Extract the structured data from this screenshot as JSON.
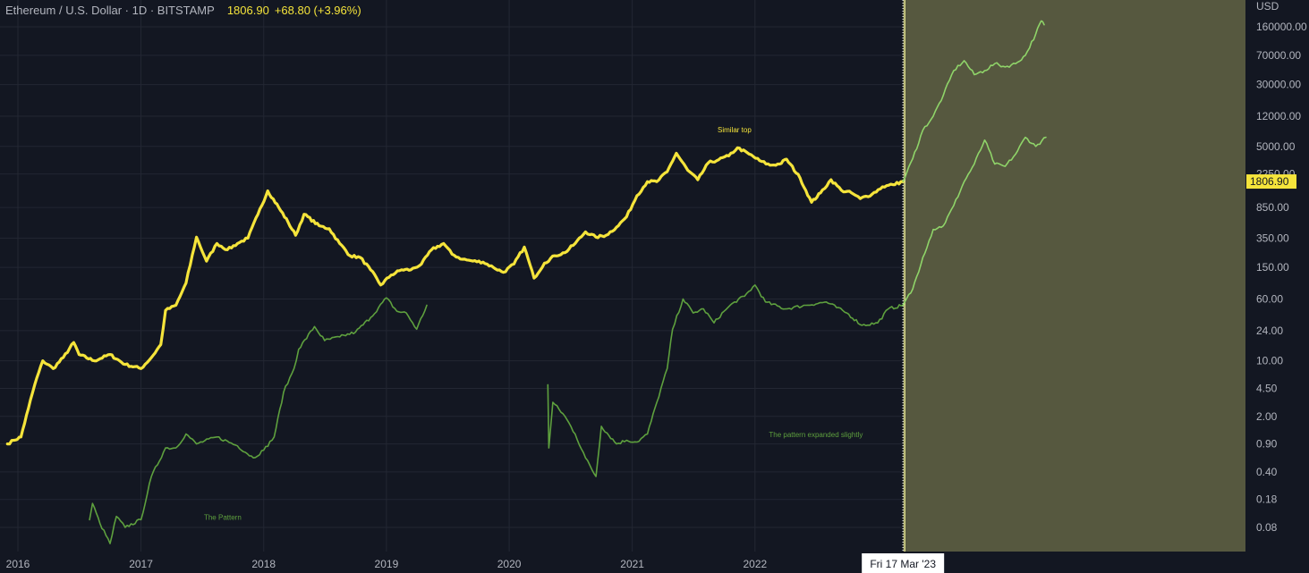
{
  "header": {
    "symbol": "Ethereum / U.S. Dollar · 1D · BITSTAMP",
    "last": "1806.90",
    "change": "+68.80 (+3.96%)"
  },
  "colors": {
    "background": "#131722",
    "grid": "#232733",
    "price_line": "#f5e43b",
    "pattern_line": "#5ea03e",
    "projection_line": "#8fd469",
    "projection_zone": "#56583f",
    "zone_border": "#e2e28f"
  },
  "chart_data": {
    "type": "line",
    "y_scale": "log",
    "y_unit": "USD",
    "y_ticks": [
      "160000.00",
      "70000.00",
      "30000.00",
      "12000.00",
      "5000.00",
      "2250.00",
      "850.00",
      "350.00",
      "150.00",
      "60.00",
      "24.00",
      "10.00",
      "4.50",
      "2.00",
      "0.90",
      "0.40",
      "0.18",
      "0.08"
    ],
    "x_ticks": [
      "2016",
      "2017",
      "2018",
      "2019",
      "2020",
      "2021",
      "2022"
    ],
    "last_price_label": "1806.90",
    "crosshair_label": "Fri 17 Mar '23",
    "annotations": [
      {
        "text": "Similar top",
        "x": "2021-11",
        "y": 7500
      },
      {
        "text": "The pattern expanded slightly",
        "x": "2022-07",
        "y": 1.1
      },
      {
        "text": "The Pattern",
        "x": "2017-09",
        "y": 0.1
      }
    ],
    "series": [
      {
        "role": "price",
        "points": [
          [
            "2015-12-01",
            0.9
          ],
          [
            "2015-12-20",
            1.0
          ],
          [
            "2016-01-10",
            1.1
          ],
          [
            "2016-02-01",
            2.5
          ],
          [
            "2016-02-20",
            5
          ],
          [
            "2016-03-15",
            10
          ],
          [
            "2016-04-15",
            8
          ],
          [
            "2016-05-15",
            11
          ],
          [
            "2016-06-15",
            17
          ],
          [
            "2016-07-01",
            12
          ],
          [
            "2016-08-15",
            10
          ],
          [
            "2016-10-01",
            12
          ],
          [
            "2016-11-15",
            9
          ],
          [
            "2017-01-01",
            8
          ],
          [
            "2017-02-01",
            11
          ],
          [
            "2017-03-01",
            16
          ],
          [
            "2017-03-15",
            43
          ],
          [
            "2017-04-15",
            50
          ],
          [
            "2017-05-15",
            95
          ],
          [
            "2017-06-15",
            360
          ],
          [
            "2017-07-15",
            180
          ],
          [
            "2017-08-15",
            300
          ],
          [
            "2017-09-15",
            250
          ],
          [
            "2017-10-15",
            300
          ],
          [
            "2017-11-15",
            350
          ],
          [
            "2017-12-15",
            700
          ],
          [
            "2018-01-13",
            1380
          ],
          [
            "2018-02-15",
            850
          ],
          [
            "2018-03-15",
            550
          ],
          [
            "2018-04-06",
            380
          ],
          [
            "2018-05-01",
            700
          ],
          [
            "2018-06-15",
            500
          ],
          [
            "2018-07-15",
            460
          ],
          [
            "2018-08-15",
            300
          ],
          [
            "2018-09-15",
            210
          ],
          [
            "2018-10-15",
            200
          ],
          [
            "2018-11-15",
            140
          ],
          [
            "2018-12-15",
            90
          ],
          [
            "2019-01-15",
            120
          ],
          [
            "2019-02-15",
            140
          ],
          [
            "2019-03-15",
            140
          ],
          [
            "2019-04-15",
            165
          ],
          [
            "2019-05-15",
            250
          ],
          [
            "2019-06-20",
            300
          ],
          [
            "2019-07-15",
            220
          ],
          [
            "2019-08-15",
            190
          ],
          [
            "2019-09-15",
            180
          ],
          [
            "2019-10-15",
            175
          ],
          [
            "2019-11-15",
            150
          ],
          [
            "2019-12-15",
            130
          ],
          [
            "2020-01-15",
            165
          ],
          [
            "2020-02-15",
            270
          ],
          [
            "2020-03-15",
            110
          ],
          [
            "2020-04-15",
            170
          ],
          [
            "2020-05-15",
            210
          ],
          [
            "2020-06-15",
            230
          ],
          [
            "2020-07-15",
            300
          ],
          [
            "2020-08-15",
            420
          ],
          [
            "2020-09-15",
            360
          ],
          [
            "2020-10-15",
            380
          ],
          [
            "2020-11-15",
            480
          ],
          [
            "2020-12-15",
            650
          ],
          [
            "2021-01-15",
            1200
          ],
          [
            "2021-02-15",
            1800
          ],
          [
            "2021-03-15",
            1800
          ],
          [
            "2021-04-15",
            2400
          ],
          [
            "2021-05-12",
            4100
          ],
          [
            "2021-06-15",
            2500
          ],
          [
            "2021-07-15",
            1900
          ],
          [
            "2021-08-15",
            3100
          ],
          [
            "2021-09-15",
            3400
          ],
          [
            "2021-10-15",
            3800
          ],
          [
            "2021-11-10",
            4800
          ],
          [
            "2021-12-15",
            4000
          ],
          [
            "2022-01-15",
            3300
          ],
          [
            "2022-02-15",
            2900
          ],
          [
            "2022-03-15",
            3000
          ],
          [
            "2022-04-05",
            3450
          ],
          [
            "2022-05-15",
            2000
          ],
          [
            "2022-06-18",
            990
          ],
          [
            "2022-07-15",
            1300
          ],
          [
            "2022-08-15",
            1900
          ],
          [
            "2022-09-15",
            1400
          ],
          [
            "2022-10-15",
            1300
          ],
          [
            "2022-11-10",
            1100
          ],
          [
            "2022-12-15",
            1250
          ],
          [
            "2023-01-15",
            1550
          ],
          [
            "2023-02-15",
            1650
          ],
          [
            "2023-03-17",
            1806.9
          ]
        ]
      },
      {
        "role": "pattern",
        "points": [
          [
            "2016-08-01",
            0.1
          ],
          [
            "2016-08-10",
            0.16
          ],
          [
            "2016-09-01",
            0.09
          ],
          [
            "2016-10-01",
            0.05
          ],
          [
            "2016-10-20",
            0.11
          ],
          [
            "2016-11-15",
            0.08
          ],
          [
            "2017-01-01",
            0.1
          ],
          [
            "2017-02-01",
            0.35
          ],
          [
            "2017-03-15",
            0.8
          ],
          [
            "2017-04-15",
            0.8
          ],
          [
            "2017-05-15",
            1.2
          ],
          [
            "2017-06-15",
            0.9
          ],
          [
            "2017-08-15",
            1.1
          ],
          [
            "2017-10-15",
            0.85
          ],
          [
            "2017-12-01",
            0.6
          ],
          [
            "2018-01-01",
            0.75
          ],
          [
            "2018-02-01",
            1.1
          ],
          [
            "2018-03-01",
            4
          ],
          [
            "2018-04-01",
            8
          ],
          [
            "2018-04-15",
            14
          ],
          [
            "2018-06-01",
            27
          ],
          [
            "2018-07-01",
            18
          ],
          [
            "2018-08-15",
            20
          ],
          [
            "2018-10-01",
            23
          ],
          [
            "2018-11-15",
            35
          ],
          [
            "2019-01-01",
            62
          ],
          [
            "2019-02-01",
            42
          ],
          [
            "2019-03-01",
            40
          ],
          [
            "2019-04-01",
            25
          ],
          [
            "2019-05-01",
            50
          ]
        ]
      },
      {
        "role": "pattern",
        "points": [
          [
            "2020-04-25",
            5
          ],
          [
            "2020-04-28",
            0.8
          ],
          [
            "2020-05-10",
            3
          ],
          [
            "2020-06-15",
            2
          ],
          [
            "2020-07-15",
            1.2
          ],
          [
            "2020-08-15",
            0.6
          ],
          [
            "2020-09-15",
            0.35
          ],
          [
            "2020-10-01",
            1.5
          ],
          [
            "2020-11-15",
            0.9
          ],
          [
            "2020-12-15",
            1
          ],
          [
            "2021-01-15",
            0.95
          ],
          [
            "2021-02-15",
            1.2
          ],
          [
            "2021-03-15",
            3
          ],
          [
            "2021-04-15",
            8
          ],
          [
            "2021-05-01",
            25
          ],
          [
            "2021-06-01",
            60
          ],
          [
            "2021-07-01",
            40
          ],
          [
            "2021-08-01",
            45
          ],
          [
            "2021-09-01",
            30
          ],
          [
            "2021-10-01",
            42
          ],
          [
            "2021-11-01",
            55
          ],
          [
            "2021-12-01",
            65
          ],
          [
            "2022-01-01",
            90
          ],
          [
            "2022-02-01",
            55
          ],
          [
            "2022-04-01",
            45
          ],
          [
            "2022-06-01",
            50
          ],
          [
            "2022-08-01",
            55
          ],
          [
            "2022-10-01",
            40
          ],
          [
            "2022-11-15",
            28
          ],
          [
            "2023-01-01",
            30
          ],
          [
            "2023-02-01",
            45
          ],
          [
            "2023-03-17",
            50
          ]
        ]
      },
      {
        "role": "projection",
        "points": [
          [
            "2023-03-17",
            1806.9
          ],
          [
            "2023-04-15",
            3500
          ],
          [
            "2023-05-15",
            8000
          ],
          [
            "2023-06-15",
            12000
          ],
          [
            "2023-07-15",
            22000
          ],
          [
            "2023-08-15",
            45000
          ],
          [
            "2023-09-15",
            60000
          ],
          [
            "2023-10-15",
            40000
          ],
          [
            "2023-11-15",
            45000
          ],
          [
            "2023-12-15",
            55000
          ],
          [
            "2024-01-15",
            50000
          ],
          [
            "2024-02-15",
            55000
          ],
          [
            "2024-03-15",
            70000
          ],
          [
            "2024-04-15",
            130000
          ],
          [
            "2024-05-01",
            190000
          ],
          [
            "2024-05-10",
            170000
          ]
        ]
      },
      {
        "role": "projection",
        "points": [
          [
            "2023-03-17",
            50
          ],
          [
            "2023-04-15",
            80
          ],
          [
            "2023-05-15",
            200
          ],
          [
            "2023-06-15",
            450
          ],
          [
            "2023-07-15",
            500
          ],
          [
            "2023-08-15",
            900
          ],
          [
            "2023-09-15",
            1800
          ],
          [
            "2023-10-15",
            3000
          ],
          [
            "2023-11-15",
            6000
          ],
          [
            "2023-12-15",
            3000
          ],
          [
            "2024-01-15",
            2800
          ],
          [
            "2024-02-15",
            4000
          ],
          [
            "2024-03-15",
            6500
          ],
          [
            "2024-04-15",
            5000
          ],
          [
            "2024-05-15",
            6500
          ]
        ]
      }
    ]
  }
}
